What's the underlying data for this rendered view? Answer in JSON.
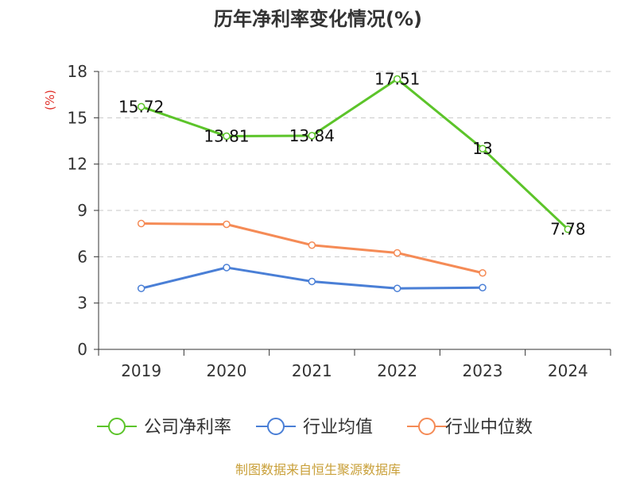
{
  "chart_data": {
    "type": "line",
    "title": "历年净利率变化情况(%)",
    "ylabel": "(%)",
    "ylabel_color": "#e0302a",
    "categories": [
      "2019",
      "2020",
      "2021",
      "2022",
      "2023",
      "2024"
    ],
    "yticks": [
      0,
      3,
      6,
      9,
      12,
      15,
      18
    ],
    "ylim": [
      0,
      18
    ],
    "grid": true,
    "legend_position": "bottom",
    "series": [
      {
        "name": "公司净利率",
        "color": "#5cc42a",
        "values": [
          15.72,
          13.81,
          13.84,
          17.51,
          13,
          7.78
        ],
        "labels": [
          "15.72",
          "13.81",
          "13.84",
          "17.51",
          "13",
          "7.78"
        ]
      },
      {
        "name": "行业均值",
        "color": "#4a7fd6",
        "values": [
          3.95,
          5.3,
          4.4,
          3.95,
          4.0,
          null
        ]
      },
      {
        "name": "行业中位数",
        "color": "#f58b56",
        "values": [
          8.15,
          8.1,
          6.75,
          6.25,
          4.95,
          null
        ]
      }
    ],
    "source_note": "制图数据来自恒生聚源数据库"
  }
}
